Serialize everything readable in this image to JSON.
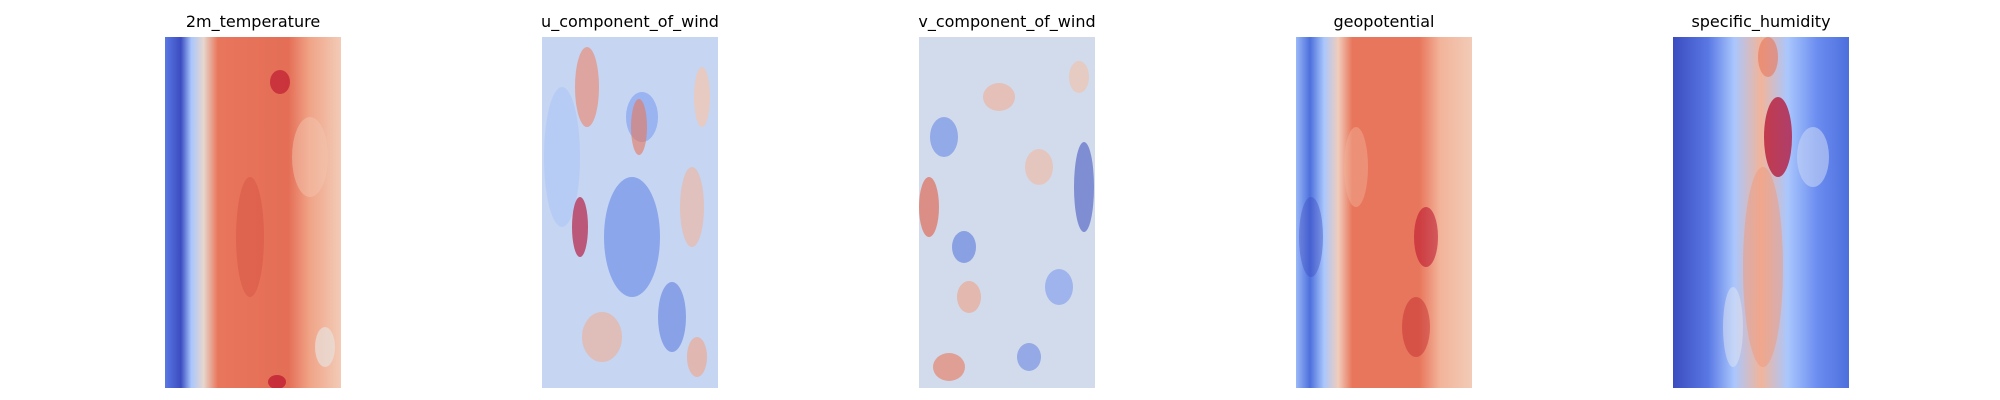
{
  "panels": [
    {
      "title": "2m_temperature",
      "icon": "heatmap-2m-temperature"
    },
    {
      "title": "u_component_of_wind",
      "icon": "heatmap-u-wind"
    },
    {
      "title": "v_component_of_wind",
      "icon": "heatmap-v-wind"
    },
    {
      "title": "geopotential",
      "icon": "heatmap-geopotential"
    },
    {
      "title": "specific_humidity",
      "icon": "heatmap-specific-humidity"
    }
  ],
  "colormap": "coolwarm",
  "colors": {
    "cold": "#3b4cc0",
    "neutral": "#dddddd",
    "warm": "#b40426"
  }
}
